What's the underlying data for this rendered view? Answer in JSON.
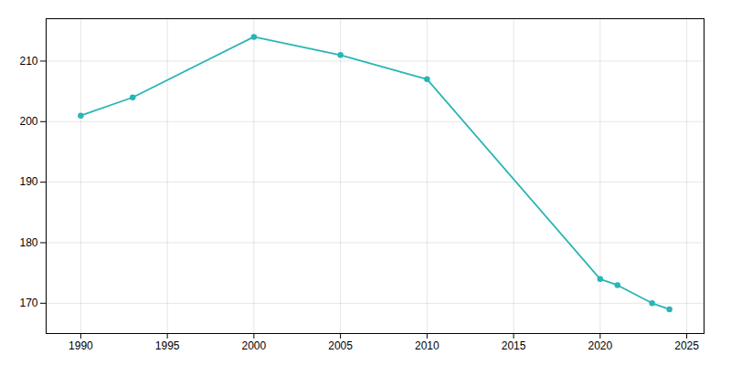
{
  "chart_data": {
    "type": "line",
    "x": [
      1990,
      1993,
      2000,
      2005,
      2010,
      2020,
      2021,
      2023,
      2024
    ],
    "values": [
      201,
      204,
      214,
      211,
      207,
      174,
      173,
      170,
      169
    ],
    "color": "#2ab5b5",
    "marker": "circle",
    "xlim": [
      1988,
      2026
    ],
    "ylim": [
      165,
      217
    ],
    "xticks": [
      1990,
      1995,
      2000,
      2005,
      2010,
      2015,
      2020,
      2025
    ],
    "yticks": [
      170,
      180,
      190,
      200,
      210
    ],
    "grid": true
  }
}
